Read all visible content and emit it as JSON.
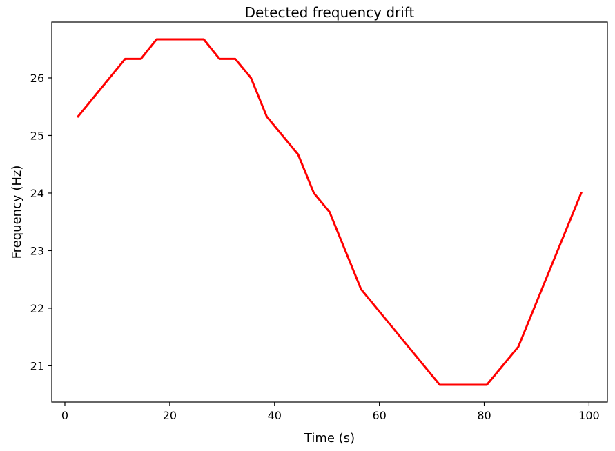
{
  "chart_data": {
    "type": "line",
    "title": "Detected frequency drift",
    "xlabel": "Time (s)",
    "ylabel": "Frequency (Hz)",
    "xlim": [
      -2.5,
      103.5
    ],
    "ylim": [
      20.37,
      26.97
    ],
    "xticks": [
      0,
      20,
      40,
      60,
      80,
      100
    ],
    "yticks": [
      21,
      22,
      23,
      24,
      25,
      26
    ],
    "grid": false,
    "series": [
      {
        "color": "#ff0000",
        "x": [
          2.5,
          11.5,
          14.5,
          17.5,
          26.5,
          29.5,
          32.5,
          35.5,
          38.5,
          44.5,
          47.5,
          50.5,
          56.5,
          71.5,
          80.5,
          86.5,
          98.5
        ],
        "y": [
          25.33,
          26.33,
          26.33,
          26.67,
          26.67,
          26.33,
          26.33,
          26.0,
          25.33,
          24.67,
          24.0,
          23.67,
          22.33,
          20.67,
          20.67,
          21.33,
          24.0
        ]
      }
    ]
  }
}
